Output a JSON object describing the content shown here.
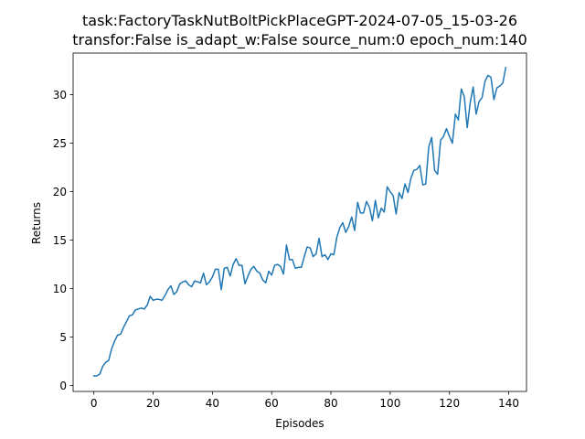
{
  "chart_data": {
    "type": "line",
    "title_line1": "task:FactoryTaskNutBoltPickPlaceGPT-2024-07-05_15-03-26",
    "title_line2": "transfor:False  is_adapt_w:False source_num:0   epoch_num:140",
    "xlabel": "Episodes",
    "ylabel": "Returns",
    "xlim": [
      -7,
      146
    ],
    "ylim": [
      -0.6,
      34.3
    ],
    "xticks": [
      0,
      20,
      40,
      60,
      80,
      100,
      120,
      140
    ],
    "yticks": [
      0,
      5,
      10,
      15,
      20,
      25,
      30
    ],
    "grid": false,
    "line_color": "#1f77b4",
    "series": [
      {
        "values": [
          1.0,
          1.0,
          1.2,
          2.0,
          2.4,
          2.6,
          3.8,
          4.6,
          5.2,
          5.3,
          6.0,
          6.6,
          7.2,
          7.3,
          7.8,
          7.9,
          8.0,
          7.9,
          8.3,
          9.2,
          8.8,
          8.9,
          8.9,
          8.8,
          9.3,
          9.9,
          10.3,
          9.4,
          9.7,
          10.5,
          10.7,
          10.8,
          10.4,
          10.2,
          10.8,
          10.7,
          10.6,
          11.6,
          10.4,
          10.7,
          11.2,
          12.0,
          12.0,
          9.9,
          12.1,
          12.2,
          11.3,
          12.5,
          13.1,
          12.4,
          12.4,
          10.5,
          11.3,
          12.0,
          12.3,
          11.8,
          11.6,
          10.9,
          10.6,
          11.8,
          11.4,
          12.4,
          12.5,
          12.3,
          11.5,
          14.5,
          13.0,
          13.0,
          12.1,
          12.2,
          12.2,
          13.3,
          14.3,
          14.2,
          13.3,
          13.6,
          15.2,
          13.3,
          13.5,
          13.0,
          13.6,
          13.5,
          15.3,
          16.3,
          16.8,
          15.8,
          16.4,
          17.4,
          16.0,
          18.9,
          17.8,
          17.8,
          19.0,
          18.4,
          17.0,
          19.1,
          17.3,
          18.3,
          17.9,
          20.5,
          20.0,
          19.6,
          17.7,
          19.9,
          19.3,
          20.8,
          19.9,
          21.4,
          22.2,
          22.3,
          22.7,
          20.7,
          20.8,
          24.6,
          25.6,
          22.2,
          21.8,
          25.3,
          25.7,
          26.5,
          25.7,
          25.0,
          28.0,
          27.4,
          30.6,
          29.8,
          26.6,
          29.2,
          30.8,
          28.0,
          29.3,
          29.7,
          31.4,
          32.0,
          31.8,
          29.5,
          30.7,
          30.9,
          31.2,
          32.8
        ]
      }
    ]
  }
}
